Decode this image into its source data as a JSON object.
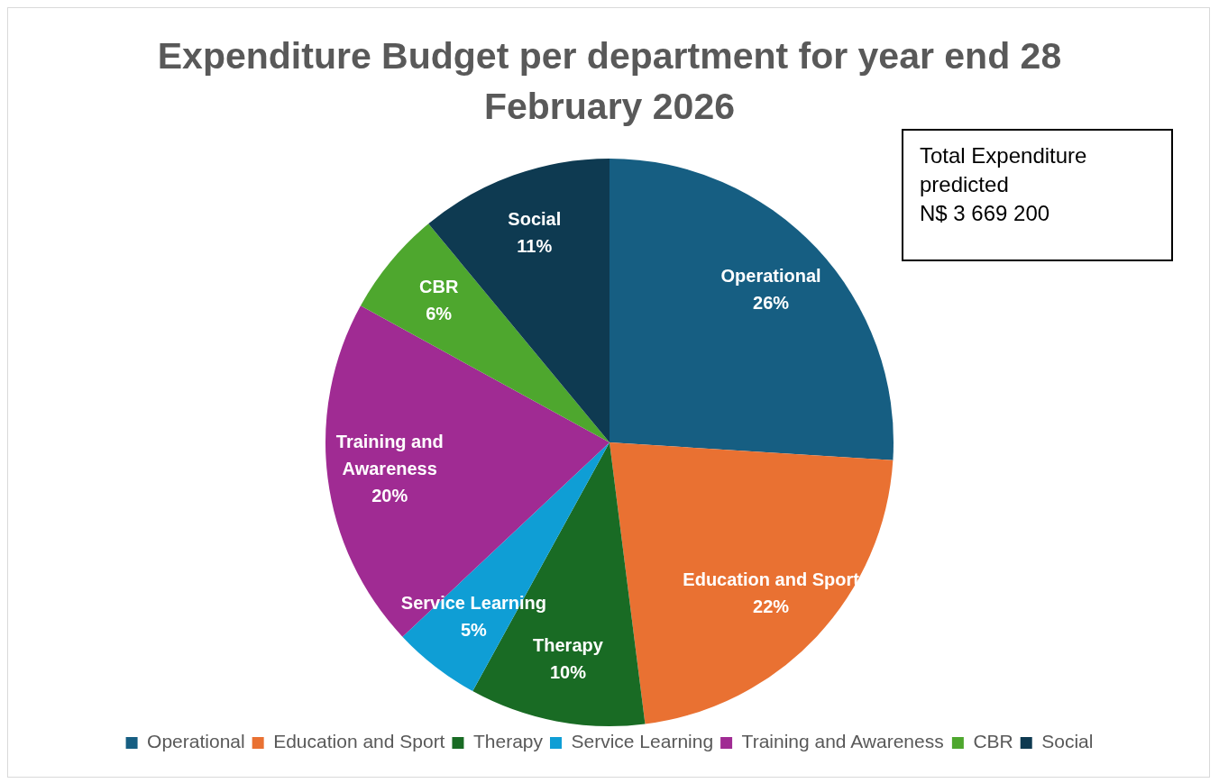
{
  "chart_data": {
    "type": "pie",
    "title": "Expenditure Budget per department for year end 28 February 2026",
    "categories": [
      "Operational",
      "Education and Sport",
      "Therapy",
      "Service Learning",
      "Training and Awareness",
      "CBR",
      "Social"
    ],
    "values": [
      26,
      22,
      10,
      5,
      20,
      6,
      11
    ],
    "colors": [
      "#165e82",
      "#e97132",
      "#196b24",
      "#0f9ed5",
      "#a02b93",
      "#4ea72e",
      "#0e3a51"
    ],
    "value_labels": [
      "26%",
      "22%",
      "10%",
      "5%",
      "20%",
      "6%",
      "11%"
    ],
    "legend": "bottom",
    "annotations": [
      "Total Expenditure\npredicted\nN$ 3 669 200"
    ]
  }
}
